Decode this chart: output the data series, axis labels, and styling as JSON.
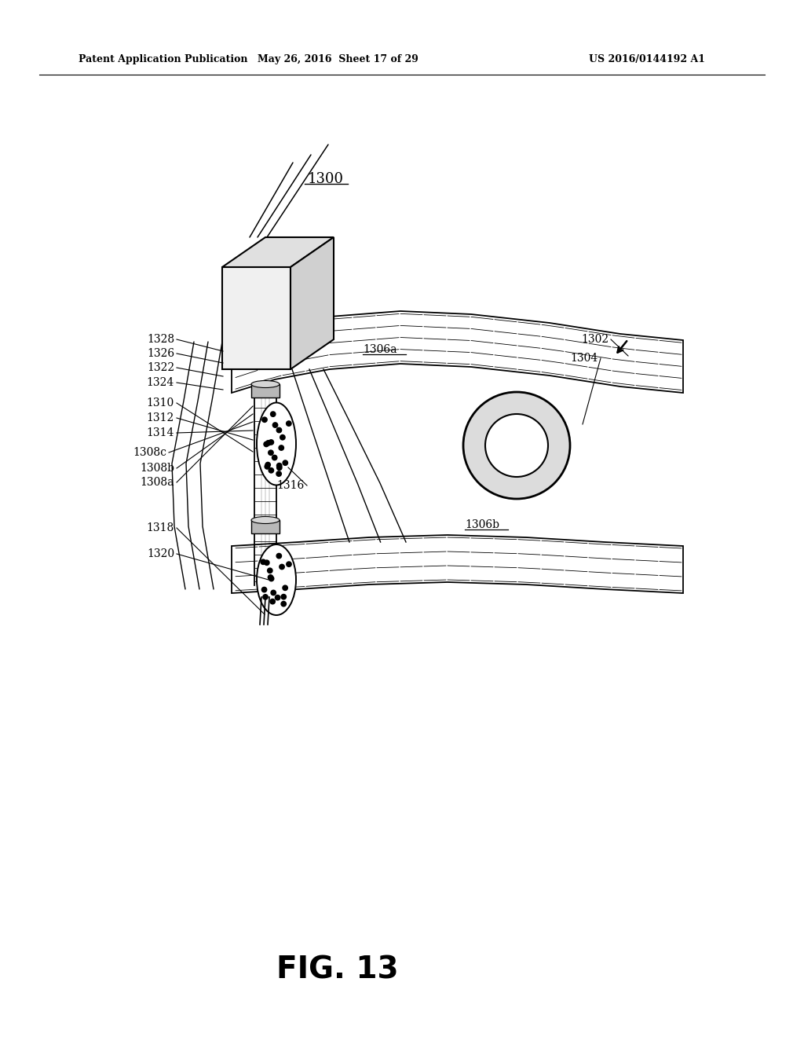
{
  "bg_color": "#ffffff",
  "header_left": "Patent Application Publication",
  "header_mid": "May 26, 2016  Sheet 17 of 29",
  "header_right": "US 2016/0144192 A1",
  "fig_label": "FIG. 13",
  "title_label": "1300",
  "label_fs": 10,
  "header_fs": 9,
  "fig_fs": 28,
  "title_fs": 13
}
